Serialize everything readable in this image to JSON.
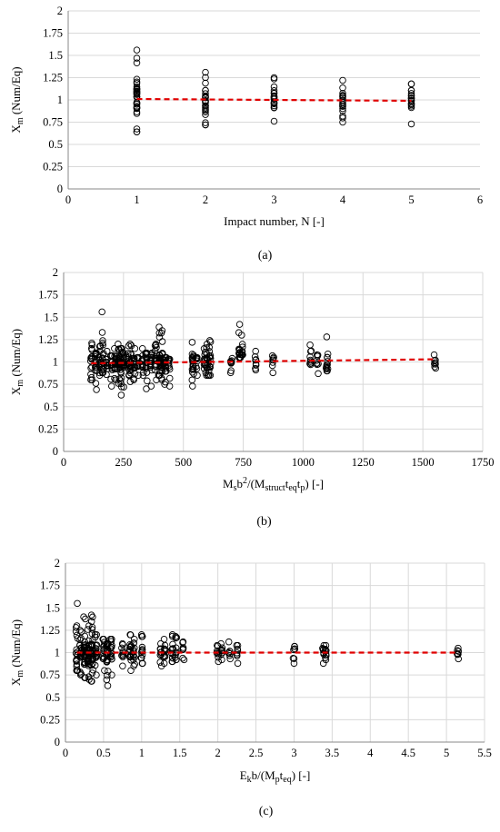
{
  "figure": {
    "captions": [
      "(a)",
      "(b)",
      "(c)"
    ]
  },
  "chart_data": [
    {
      "type": "scatter",
      "id": "a",
      "caption": "(a)",
      "ylabel_main": "X",
      "ylabel_sub": "m",
      "ylabel_rest": " (Num/Eq)",
      "xlabel_parts": [
        {
          "t": "Impact number, N [-]",
          "s": "n"
        }
      ],
      "xlim": [
        0,
        6
      ],
      "ylim": [
        0,
        2
      ],
      "xticks": [
        "0",
        "1",
        "2",
        "3",
        "4",
        "5",
        "6"
      ],
      "xtick_values": [
        0,
        1,
        2,
        3,
        4,
        5,
        6
      ],
      "yticks": [
        "0",
        "0.25",
        "0.5",
        "0.75",
        "1",
        "1.25",
        "1.5",
        "1.75",
        "2"
      ],
      "ytick_values": [
        0,
        0.25,
        0.5,
        0.75,
        1,
        1.25,
        1.5,
        1.75,
        2
      ],
      "grid": "horizontal",
      "trendline": {
        "x": [
          1,
          5
        ],
        "y": [
          1.01,
          0.99
        ],
        "color": "#e00000",
        "style": "dashed"
      },
      "groups": [
        {
          "x": 1,
          "ymin": 0.64,
          "ymax": 1.56
        },
        {
          "x": 2,
          "ymin": 0.72,
          "ymax": 1.31
        },
        {
          "x": 3,
          "ymin": 0.76,
          "ymax": 1.25
        },
        {
          "x": 4,
          "ymin": 0.75,
          "ymax": 1.22
        },
        {
          "x": 5,
          "ymin": 0.73,
          "ymax": 1.18
        }
      ]
    },
    {
      "type": "scatter",
      "id": "b",
      "caption": "(b)",
      "ylabel_main": "X",
      "ylabel_sub": "m",
      "ylabel_rest": " (Num/Eq)",
      "xlabel_parts": [
        {
          "t": "M",
          "s": "n"
        },
        {
          "t": "s",
          "s": "sub"
        },
        {
          "t": "b",
          "s": "n"
        },
        {
          "t": "2",
          "s": "sup"
        },
        {
          "t": "/(M",
          "s": "n"
        },
        {
          "t": "struct",
          "s": "sub"
        },
        {
          "t": "t",
          "s": "n"
        },
        {
          "t": "eq",
          "s": "sub"
        },
        {
          "t": "t",
          "s": "n"
        },
        {
          "t": "p",
          "s": "sub"
        },
        {
          "t": ") [-]",
          "s": "n"
        }
      ],
      "xlim": [
        0,
        1750
      ],
      "ylim": [
        0,
        2
      ],
      "xticks": [
        "0",
        "250",
        "500",
        "750",
        "1000",
        "1250",
        "1500",
        "1750"
      ],
      "xtick_values": [
        0,
        250,
        500,
        750,
        1000,
        1250,
        1500,
        1750
      ],
      "yticks": [
        "0",
        "0.25",
        "0.5",
        "0.75",
        "1",
        "1.25",
        "1.5",
        "1.75",
        "2"
      ],
      "ytick_values": [
        0,
        0.25,
        0.5,
        0.75,
        1,
        1.25,
        1.5,
        1.75,
        2
      ],
      "grid": "both",
      "trendline": {
        "x": [
          115,
          1550
        ],
        "y": [
          0.985,
          1.03
        ],
        "color": "#e00000",
        "style": "dashed"
      },
      "groups": [
        {
          "x": 115,
          "ymin": 0.8,
          "ymax": 1.21
        },
        {
          "x": 135,
          "ymin": 0.69,
          "ymax": 1.1
        },
        {
          "x": 150,
          "ymin": 0.85,
          "ymax": 1.18
        },
        {
          "x": 165,
          "ymin": 0.88,
          "ymax": 1.33
        },
        {
          "x": 162,
          "ymin": 1.56,
          "ymax": 1.56
        },
        {
          "x": 180,
          "ymin": 0.86,
          "ymax": 1.12
        },
        {
          "x": 200,
          "ymin": 0.73,
          "ymax": 1.07
        },
        {
          "x": 215,
          "ymin": 0.8,
          "ymax": 1.15
        },
        {
          "x": 230,
          "ymin": 0.76,
          "ymax": 1.2
        },
        {
          "x": 240,
          "ymin": 0.63,
          "ymax": 1.15
        },
        {
          "x": 250,
          "ymin": 0.72,
          "ymax": 1.1
        },
        {
          "x": 270,
          "ymin": 0.85,
          "ymax": 1.18
        },
        {
          "x": 280,
          "ymin": 0.78,
          "ymax": 1.2
        },
        {
          "x": 295,
          "ymin": 0.8,
          "ymax": 1.15
        },
        {
          "x": 310,
          "ymin": 0.85,
          "ymax": 1.05
        },
        {
          "x": 330,
          "ymin": 0.85,
          "ymax": 1.15
        },
        {
          "x": 345,
          "ymin": 0.7,
          "ymax": 1.1
        },
        {
          "x": 365,
          "ymin": 0.73,
          "ymax": 1.1
        },
        {
          "x": 385,
          "ymin": 0.8,
          "ymax": 1.2
        },
        {
          "x": 400,
          "ymin": 0.85,
          "ymax": 1.39
        },
        {
          "x": 410,
          "ymin": 0.8,
          "ymax": 1.35
        },
        {
          "x": 425,
          "ymin": 0.75,
          "ymax": 1.05
        },
        {
          "x": 440,
          "ymin": 0.73,
          "ymax": 1.03
        },
        {
          "x": 540,
          "ymin": 0.73,
          "ymax": 1.22
        },
        {
          "x": 555,
          "ymin": 0.85,
          "ymax": 1.05
        },
        {
          "x": 590,
          "ymin": 0.88,
          "ymax": 1.15
        },
        {
          "x": 600,
          "ymin": 0.85,
          "ymax": 1.2
        },
        {
          "x": 610,
          "ymin": 0.85,
          "ymax": 1.24
        },
        {
          "x": 700,
          "ymin": 0.88,
          "ymax": 1.04
        },
        {
          "x": 735,
          "ymin": 1.05,
          "ymax": 1.42
        },
        {
          "x": 745,
          "ymin": 1.08,
          "ymax": 1.3
        },
        {
          "x": 800,
          "ymin": 0.91,
          "ymax": 1.12
        },
        {
          "x": 875,
          "ymin": 0.88,
          "ymax": 1.07
        },
        {
          "x": 1030,
          "ymin": 0.97,
          "ymax": 1.19
        },
        {
          "x": 1060,
          "ymin": 0.87,
          "ymax": 1.08
        },
        {
          "x": 1100,
          "ymin": 0.9,
          "ymax": 1.28
        },
        {
          "x": 1550,
          "ymin": 0.93,
          "ymax": 1.08
        }
      ]
    },
    {
      "type": "scatter",
      "id": "c",
      "caption": "(c)",
      "ylabel_main": "X",
      "ylabel_sub": "m",
      "ylabel_rest": " (Num/Eq)",
      "xlabel_parts": [
        {
          "t": "E",
          "s": "n"
        },
        {
          "t": "k",
          "s": "sub"
        },
        {
          "t": "b/(M",
          "s": "n"
        },
        {
          "t": "p",
          "s": "sub"
        },
        {
          "t": "t",
          "s": "n"
        },
        {
          "t": "eq",
          "s": "sub"
        },
        {
          "t": ") [-]",
          "s": "n"
        }
      ],
      "xlim": [
        0,
        5.5
      ],
      "ylim": [
        0,
        2
      ],
      "xticks": [
        "0",
        "0.5",
        "1",
        "1.5",
        "2",
        "2.5",
        "3",
        "3.5",
        "4",
        "4.5",
        "5",
        "5.5"
      ],
      "xtick_values": [
        0,
        0.5,
        1,
        1.5,
        2,
        2.5,
        3,
        3.5,
        4,
        4.5,
        5,
        5.5
      ],
      "yticks": [
        "0",
        "0.25",
        "0.5",
        "0.75",
        "1",
        "1.25",
        "1.5",
        "1.75",
        "2"
      ],
      "ytick_values": [
        0,
        0.25,
        0.5,
        0.75,
        1,
        1.25,
        1.5,
        1.75,
        2
      ],
      "grid": "both",
      "trendline": {
        "x": [
          0.15,
          5.15
        ],
        "y": [
          1.0,
          1.0
        ],
        "color": "#e00000",
        "style": "dashed"
      },
      "groups": [
        {
          "x": 0.15,
          "ymin": 0.8,
          "ymax": 1.3
        },
        {
          "x": 0.16,
          "ymin": 1.55,
          "ymax": 1.55
        },
        {
          "x": 0.2,
          "ymin": 0.75,
          "ymax": 1.25
        },
        {
          "x": 0.25,
          "ymin": 0.72,
          "ymax": 1.4
        },
        {
          "x": 0.3,
          "ymin": 0.7,
          "ymax": 1.3
        },
        {
          "x": 0.35,
          "ymin": 0.68,
          "ymax": 1.42
        },
        {
          "x": 0.4,
          "ymin": 0.75,
          "ymax": 1.2
        },
        {
          "x": 0.5,
          "ymin": 0.8,
          "ymax": 1.15
        },
        {
          "x": 0.55,
          "ymin": 0.63,
          "ymax": 1.1
        },
        {
          "x": 0.6,
          "ymin": 0.75,
          "ymax": 1.15
        },
        {
          "x": 0.75,
          "ymin": 0.85,
          "ymax": 1.1
        },
        {
          "x": 0.85,
          "ymin": 0.8,
          "ymax": 1.2
        },
        {
          "x": 0.9,
          "ymin": 0.85,
          "ymax": 1.15
        },
        {
          "x": 1.0,
          "ymin": 0.88,
          "ymax": 1.2
        },
        {
          "x": 1.25,
          "ymin": 0.85,
          "ymax": 1.1
        },
        {
          "x": 1.3,
          "ymin": 0.88,
          "ymax": 1.15
        },
        {
          "x": 1.4,
          "ymin": 0.9,
          "ymax": 1.2
        },
        {
          "x": 1.45,
          "ymin": 0.92,
          "ymax": 1.18
        },
        {
          "x": 1.55,
          "ymin": 0.92,
          "ymax": 1.12
        },
        {
          "x": 2.0,
          "ymin": 0.9,
          "ymax": 1.08
        },
        {
          "x": 2.05,
          "ymin": 0.92,
          "ymax": 1.1
        },
        {
          "x": 2.15,
          "ymin": 0.93,
          "ymax": 1.12
        },
        {
          "x": 2.25,
          "ymin": 0.88,
          "ymax": 1.08
        },
        {
          "x": 3.0,
          "ymin": 0.88,
          "ymax": 1.07
        },
        {
          "x": 3.38,
          "ymin": 0.88,
          "ymax": 1.08
        },
        {
          "x": 3.42,
          "ymin": 0.92,
          "ymax": 1.08
        },
        {
          "x": 5.15,
          "ymin": 0.93,
          "ymax": 1.05
        }
      ]
    }
  ]
}
